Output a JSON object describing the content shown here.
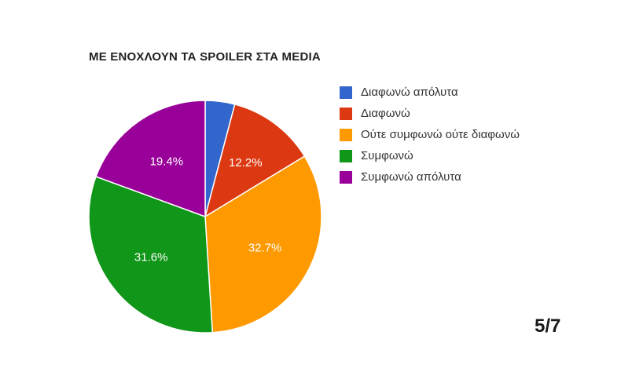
{
  "chart_data": {
    "type": "pie",
    "title": "ΜΕ ΕΝΟΧΛΟΥΝ ΤΑ SPOILER ΣΤΑ MEDIA",
    "categories": [
      "Διαφωνώ απόλυτα",
      "Διαφωνώ",
      "Ούτε συμφωνώ ούτε διαφωνώ",
      "Συμφωνώ",
      "Συμφωνώ απόλυτα"
    ],
    "values": [
      4.1,
      12.2,
      32.7,
      31.6,
      19.4
    ],
    "data_labels": [
      "",
      "12.2%",
      "32.7%",
      "31.6%",
      "19.4%"
    ],
    "colors": [
      "#3366cc",
      "#dc3912",
      "#ff9900",
      "#109618",
      "#990099"
    ],
    "legend_position": "right",
    "unit": "%"
  },
  "page_counter": "5/7"
}
